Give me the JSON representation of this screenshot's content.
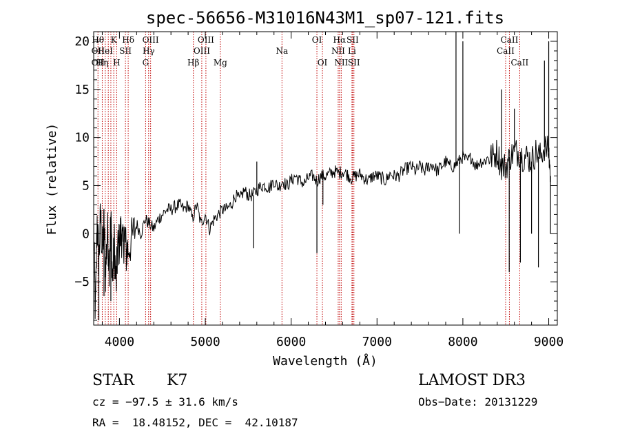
{
  "chart_data": {
    "type": "line",
    "title": "spec-56656-M31016N43M1_sp07-121.fits",
    "xlabel": "Wavelength (Å)",
    "ylabel": "Flux (relative)",
    "xlim": [
      3700,
      9100
    ],
    "ylim": [
      -9.5,
      21
    ],
    "xticks": [
      {
        "value": 4000,
        "label": "4000"
      },
      {
        "value": 5000,
        "label": "5000"
      },
      {
        "value": 6000,
        "label": "6000"
      },
      {
        "value": 7000,
        "label": "7000"
      },
      {
        "value": 8000,
        "label": "8000"
      },
      {
        "value": 9000,
        "label": "9000"
      }
    ],
    "yticks": [
      {
        "value": -5,
        "label": "−5"
      },
      {
        "value": 0,
        "label": "0"
      },
      {
        "value": 5,
        "label": "5"
      },
      {
        "value": 10,
        "label": "10"
      },
      {
        "value": 15,
        "label": "15"
      },
      {
        "value": 20,
        "label": "20"
      }
    ],
    "series": [
      {
        "name": "flux",
        "x": [
          3700,
          3720,
          3740,
          3760,
          3780,
          3800,
          3820,
          3840,
          3860,
          3880,
          3900,
          3920,
          3940,
          3960,
          3980,
          4000,
          4020,
          4040,
          4060,
          4080,
          4100,
          4150,
          4200,
          4250,
          4300,
          4350,
          4400,
          4450,
          4500,
          4550,
          4600,
          4650,
          4700,
          4750,
          4800,
          4850,
          4900,
          4950,
          5000,
          5050,
          5100,
          5150,
          5200,
          5250,
          5300,
          5350,
          5400,
          5450,
          5500,
          5550,
          5600,
          5650,
          5700,
          5750,
          5800,
          5850,
          5900,
          5950,
          6000,
          6050,
          6100,
          6150,
          6200,
          6250,
          6300,
          6350,
          6400,
          6450,
          6500,
          6550,
          6600,
          6650,
          6700,
          6750,
          6800,
          6850,
          6900,
          6950,
          7000,
          7050,
          7100,
          7150,
          7200,
          7250,
          7300,
          7350,
          7400,
          7450,
          7500,
          7550,
          7600,
          7650,
          7700,
          7750,
          7800,
          7850,
          7900,
          7950,
          8000,
          8050,
          8100,
          8150,
          8200,
          8250,
          8300,
          8350,
          8400,
          8450,
          8500,
          8550,
          8600,
          8650,
          8700,
          8750,
          8800,
          8850,
          8900,
          8950,
          9000,
          9020
        ],
        "y": [
          0.5,
          -8.5,
          1.5,
          -3,
          2,
          -2,
          1,
          -4,
          0.5,
          -3,
          1.5,
          -5,
          -1,
          -5.5,
          -1.5,
          -1,
          0.5,
          -1.5,
          0,
          -2,
          -1.5,
          -0.5,
          1,
          0,
          1.5,
          1,
          0.5,
          1.5,
          2,
          2.5,
          2.5,
          2.8,
          3,
          2.5,
          3,
          1.5,
          3,
          1,
          2,
          0.5,
          1.5,
          2,
          2.5,
          2.5,
          3,
          4,
          3.5,
          4.5,
          4,
          4,
          4.5,
          5,
          5,
          4.8,
          5.5,
          4.8,
          5.5,
          5,
          5.5,
          6,
          5.5,
          5.2,
          5.8,
          6,
          5.5,
          6,
          6,
          6.2,
          6.5,
          6.3,
          6.5,
          6.2,
          5.8,
          6,
          6.2,
          5.8,
          5.5,
          6,
          6,
          5.8,
          5.5,
          6.2,
          6,
          6,
          6.5,
          6.8,
          7,
          6.5,
          7,
          6.5,
          7,
          7.2,
          6.5,
          7,
          7.5,
          7,
          7,
          7.5,
          8,
          7.5,
          8,
          7,
          7.5,
          7.5,
          8,
          8,
          8.5,
          7,
          7,
          8,
          8.5,
          8.5,
          8,
          8,
          7.5,
          8.5,
          8,
          9,
          8.5,
          6
        ]
      }
    ],
    "spikes": [
      {
        "x": 3760,
        "y": -9
      },
      {
        "x": 3820,
        "y": -6.5
      },
      {
        "x": 3900,
        "y": -7
      },
      {
        "x": 5600,
        "y": 7.5
      },
      {
        "x": 5560,
        "y": -1.5
      },
      {
        "x": 6300,
        "y": -2
      },
      {
        "x": 6370,
        "y": 3
      },
      {
        "x": 7920,
        "y": 21
      },
      {
        "x": 7960,
        "y": 0
      },
      {
        "x": 8000,
        "y": 20
      },
      {
        "x": 8450,
        "y": 15
      },
      {
        "x": 8540,
        "y": -4
      },
      {
        "x": 8600,
        "y": 13
      },
      {
        "x": 8670,
        "y": -3
      },
      {
        "x": 8800,
        "y": 0
      },
      {
        "x": 8880,
        "y": -3.5
      },
      {
        "x": 8950,
        "y": 18
      },
      {
        "x": 9000,
        "y": 20
      },
      {
        "x": 9020,
        "y": 0
      }
    ],
    "lines": [
      {
        "x": 3750,
        "labels": [
          {
            "text": "Hθ",
            "row": 1
          },
          {
            "text": "OII",
            "row": 2
          },
          {
            "text": "OII",
            "row": 3
          }
        ]
      },
      {
        "x": 3800,
        "labels": [
          {
            "text": "Hη",
            "row": 3
          }
        ]
      },
      {
        "x": 3835,
        "labels": [
          {
            "text": "HeI",
            "row": 2
          }
        ]
      },
      {
        "x": 3870,
        "labels": []
      },
      {
        "x": 3900,
        "labels": []
      },
      {
        "x": 3934,
        "labels": [
          {
            "text": "K",
            "row": 1
          }
        ]
      },
      {
        "x": 3968,
        "labels": [
          {
            "text": "H",
            "row": 3
          }
        ]
      },
      {
        "x": 4070,
        "labels": [
          {
            "text": "SII",
            "row": 2
          }
        ]
      },
      {
        "x": 4102,
        "labels": [
          {
            "text": "Hδ",
            "row": 1
          }
        ]
      },
      {
        "x": 4305,
        "labels": [
          {
            "text": "G",
            "row": 3
          }
        ]
      },
      {
        "x": 4340,
        "labels": [
          {
            "text": "Hγ",
            "row": 2
          }
        ]
      },
      {
        "x": 4363,
        "labels": [
          {
            "text": "OIII",
            "row": 1
          }
        ]
      },
      {
        "x": 4861,
        "labels": [
          {
            "text": "Hβ",
            "row": 3
          }
        ]
      },
      {
        "x": 4959,
        "labels": [
          {
            "text": "OIII",
            "row": 2
          }
        ]
      },
      {
        "x": 5007,
        "labels": [
          {
            "text": "OIII",
            "row": 1
          }
        ]
      },
      {
        "x": 5175,
        "labels": [
          {
            "text": "Mg",
            "row": 3
          }
        ]
      },
      {
        "x": 5893,
        "labels": [
          {
            "text": "Na",
            "row": 2
          }
        ]
      },
      {
        "x": 6300,
        "labels": [
          {
            "text": "OI",
            "row": 1
          }
        ]
      },
      {
        "x": 6364,
        "labels": [
          {
            "text": "OI",
            "row": 3
          }
        ]
      },
      {
        "x": 6548,
        "labels": [
          {
            "text": "NII",
            "row": 2
          }
        ]
      },
      {
        "x": 6563,
        "labels": [
          {
            "text": "Hα",
            "row": 1
          }
        ]
      },
      {
        "x": 6583,
        "labels": [
          {
            "text": "NII",
            "row": 3
          }
        ]
      },
      {
        "x": 6708,
        "labels": [
          {
            "text": "Li",
            "row": 2
          }
        ]
      },
      {
        "x": 6716,
        "labels": [
          {
            "text": "SII",
            "row": 1
          }
        ]
      },
      {
        "x": 6731,
        "labels": [
          {
            "text": "SII",
            "row": 3
          }
        ]
      },
      {
        "x": 8498,
        "labels": [
          {
            "text": "CaII",
            "row": 2
          }
        ]
      },
      {
        "x": 8542,
        "labels": [
          {
            "text": "CaII",
            "row": 1
          }
        ]
      },
      {
        "x": 8662,
        "labels": [
          {
            "text": "CaII",
            "row": 3
          }
        ]
      }
    ]
  },
  "footer": {
    "class_label": "STAR",
    "subclass": "K7",
    "survey": "LAMOST DR3",
    "cz": "cz = −97.5 ± 31.6 km/s",
    "obs_date": "Obs−Date: 20131229",
    "coords": "RA =  18.48152, DEC =  42.10187"
  },
  "colors": {
    "line_marker": "#c00000",
    "spectrum": "#000000"
  }
}
